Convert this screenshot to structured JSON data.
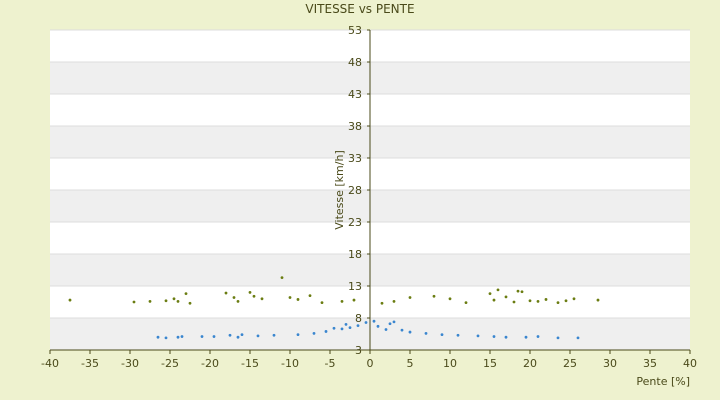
{
  "chart_data": {
    "type": "scatter",
    "title": "VITESSE vs PENTE",
    "xlabel": "Pente [%]",
    "ylabel": "Vitesse [km/h]",
    "xlim": [
      -40,
      40
    ],
    "ylim": [
      3,
      53
    ],
    "x_ticks": [
      "-40",
      "-35",
      "-30",
      "-25",
      "-20",
      "-15",
      "-10",
      "-5",
      "0",
      "5",
      "10",
      "15",
      "20",
      "25",
      "30",
      "35",
      "40"
    ],
    "y_ticks": [
      "3",
      "8",
      "13",
      "18",
      "23",
      "28",
      "33",
      "38",
      "43",
      "48",
      "53"
    ],
    "grid": true,
    "legend": false,
    "colors": {
      "series_upper": "#6b7d12",
      "series_lower": "#3a86cf",
      "band_light": "#ffffff",
      "band_dark": "#efefef",
      "axis": "#4a4a1a"
    },
    "series": [
      {
        "color": "#6b7d12",
        "points": [
          [
            -37.5,
            10.8
          ],
          [
            -29.5,
            10.5
          ],
          [
            -27.5,
            10.6
          ],
          [
            -25.5,
            10.7
          ],
          [
            -24.5,
            11.0
          ],
          [
            -24.0,
            10.6
          ],
          [
            -23.0,
            11.8
          ],
          [
            -22.5,
            10.3
          ],
          [
            -18.0,
            11.9
          ],
          [
            -17.0,
            11.2
          ],
          [
            -16.5,
            10.6
          ],
          [
            -15.0,
            12.0
          ],
          [
            -14.5,
            11.4
          ],
          [
            -13.5,
            11.0
          ],
          [
            -11.0,
            14.3
          ],
          [
            -10.0,
            11.2
          ],
          [
            -9.0,
            10.9
          ],
          [
            -7.5,
            11.5
          ],
          [
            -6.0,
            10.4
          ],
          [
            -3.5,
            10.6
          ],
          [
            -2.0,
            10.8
          ],
          [
            1.5,
            10.3
          ],
          [
            3.0,
            10.6
          ],
          [
            5.0,
            11.2
          ],
          [
            8.0,
            11.4
          ],
          [
            10.0,
            11.0
          ],
          [
            12.0,
            10.4
          ],
          [
            15.0,
            11.8
          ],
          [
            15.5,
            10.8
          ],
          [
            16.0,
            12.4
          ],
          [
            17.0,
            11.3
          ],
          [
            18.0,
            10.5
          ],
          [
            18.5,
            12.2
          ],
          [
            19.0,
            12.1
          ],
          [
            20.0,
            10.7
          ],
          [
            21.0,
            10.6
          ],
          [
            22.0,
            10.9
          ],
          [
            23.5,
            10.4
          ],
          [
            24.5,
            10.7
          ],
          [
            25.5,
            11.0
          ],
          [
            28.5,
            10.8
          ]
        ]
      },
      {
        "color": "#3a86cf",
        "points": [
          [
            -26.5,
            5.0
          ],
          [
            -25.5,
            4.9
          ],
          [
            -24.0,
            5.0
          ],
          [
            -23.5,
            5.1
          ],
          [
            -21.0,
            5.1
          ],
          [
            -19.5,
            5.1
          ],
          [
            -17.5,
            5.3
          ],
          [
            -16.5,
            5.0
          ],
          [
            -16.0,
            5.4
          ],
          [
            -14.0,
            5.2
          ],
          [
            -12.0,
            5.3
          ],
          [
            -9.0,
            5.4
          ],
          [
            -7.0,
            5.6
          ],
          [
            -5.5,
            5.9
          ],
          [
            -4.5,
            6.4
          ],
          [
            -3.5,
            6.3
          ],
          [
            -3.0,
            7.0
          ],
          [
            -2.5,
            6.5
          ],
          [
            -1.5,
            6.8
          ],
          [
            -0.5,
            7.3
          ],
          [
            0.5,
            7.5
          ],
          [
            1.0,
            6.7
          ],
          [
            2.0,
            6.2
          ],
          [
            2.5,
            7.1
          ],
          [
            3.0,
            7.4
          ],
          [
            4.0,
            6.1
          ],
          [
            5.0,
            5.8
          ],
          [
            7.0,
            5.6
          ],
          [
            9.0,
            5.4
          ],
          [
            11.0,
            5.3
          ],
          [
            13.5,
            5.2
          ],
          [
            15.5,
            5.1
          ],
          [
            17.0,
            5.0
          ],
          [
            19.5,
            5.0
          ],
          [
            21.0,
            5.1
          ],
          [
            23.5,
            4.9
          ],
          [
            26.0,
            4.9
          ]
        ]
      }
    ]
  }
}
